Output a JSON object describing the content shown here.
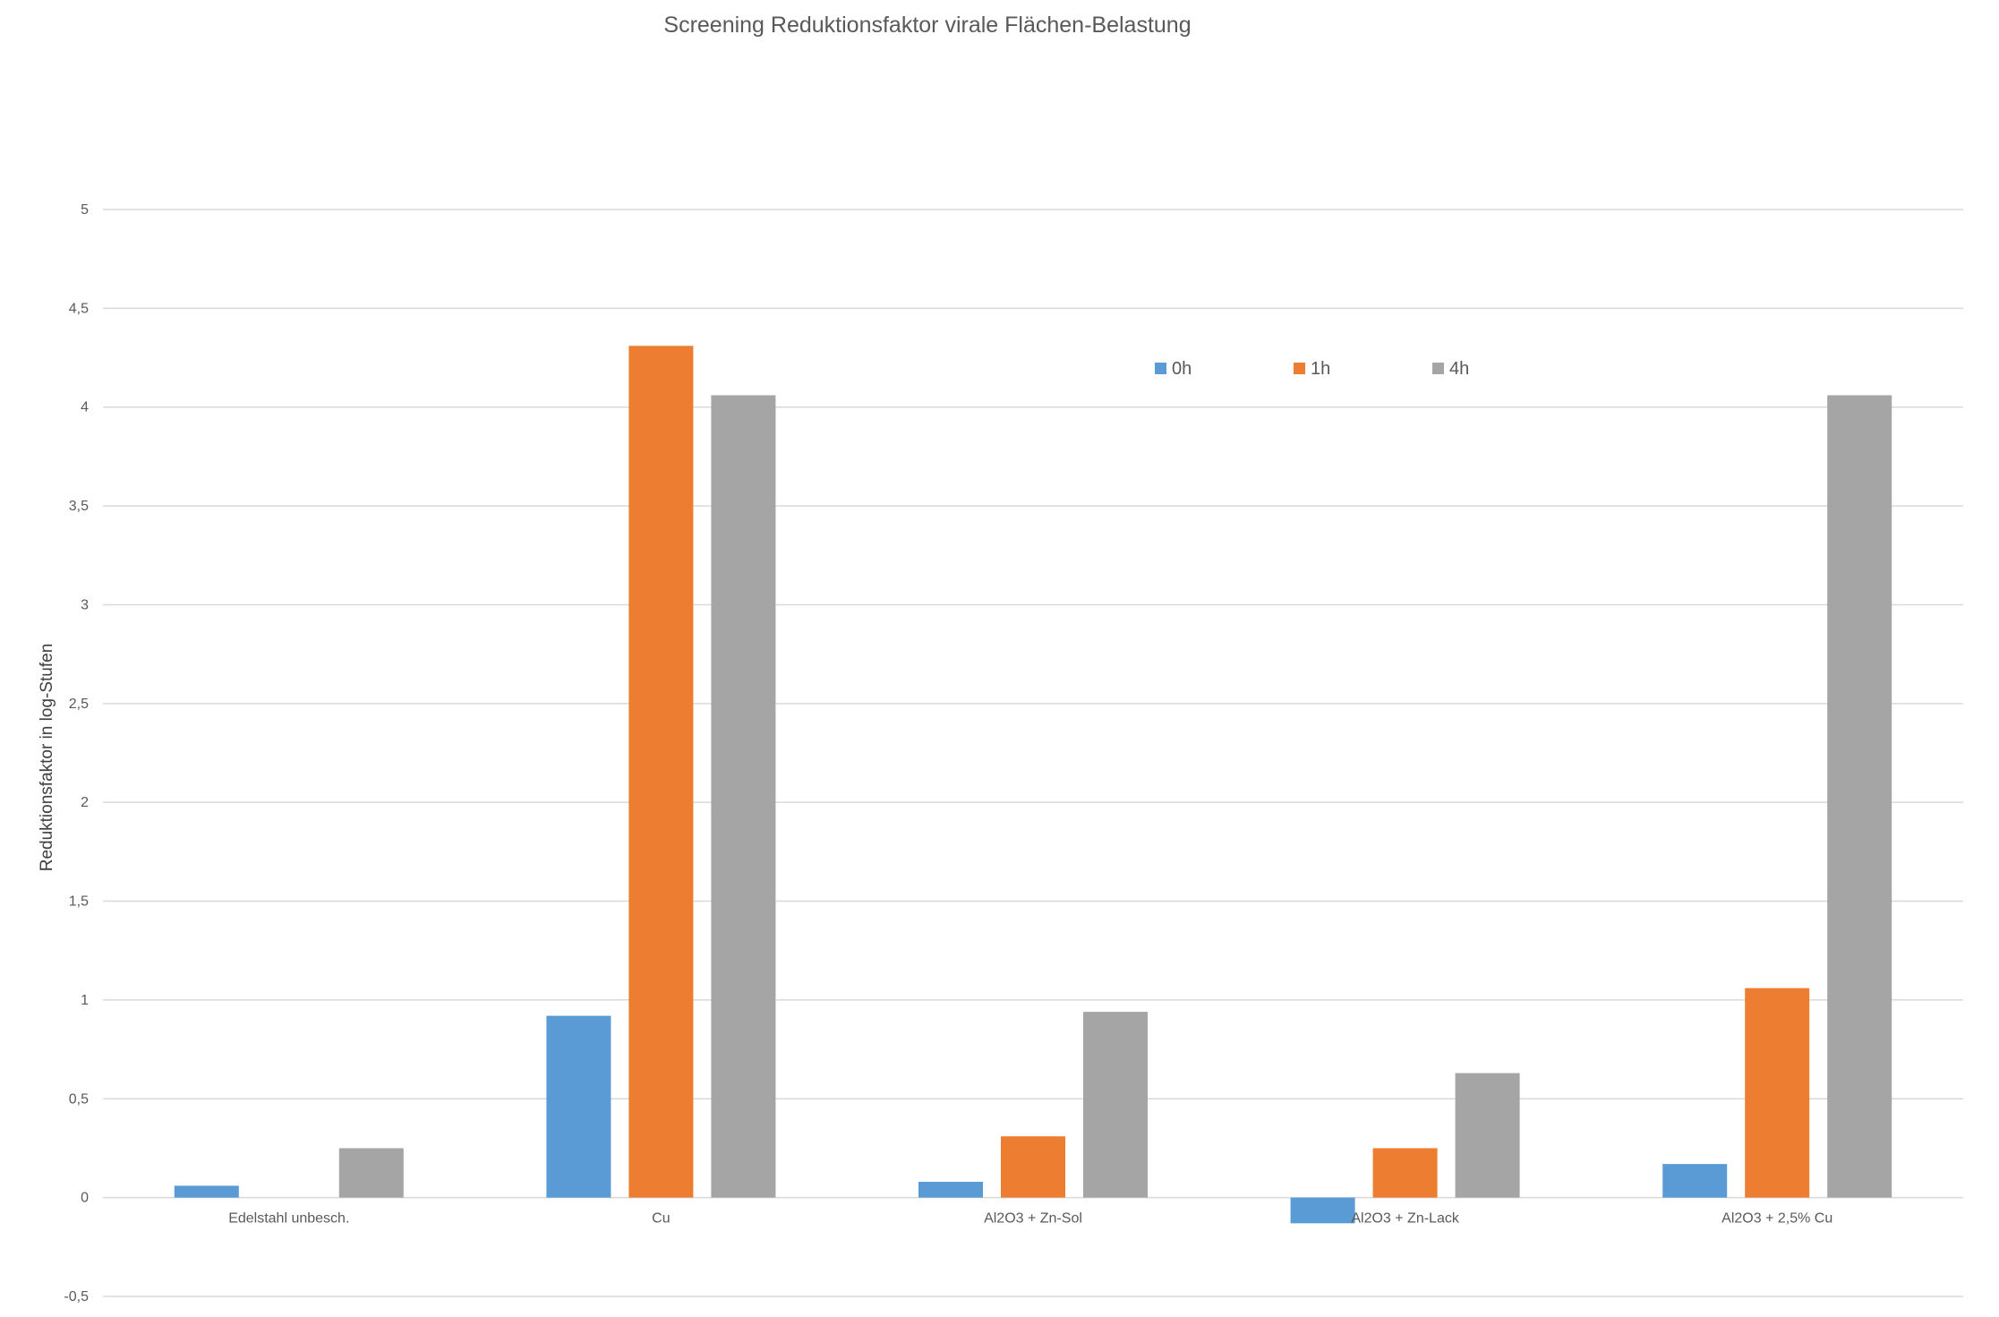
{
  "chart_data": {
    "type": "bar",
    "title": "Screening Reduktionsfaktor virale Flächen-Belastung",
    "xlabel": "",
    "ylabel": "Reduktionsfaktor in log-Stufen",
    "categories": [
      "Edelstahl unbesch.",
      "Cu",
      "Al2O3 + Zn-Sol",
      "Al2O3 + Zn-Lack",
      "Al2O3 + 2,5% Cu"
    ],
    "series": [
      {
        "name": "0h",
        "color": "#5B9BD5",
        "values": [
          0.06,
          0.92,
          0.08,
          -0.13,
          0.17
        ]
      },
      {
        "name": "1h",
        "color": "#ED7D31",
        "values": [
          0,
          4.31,
          0.31,
          0.25,
          1.06
        ]
      },
      {
        "name": "4h",
        "color": "#A5A5A5",
        "values": [
          0.25,
          4.06,
          0.94,
          0.63,
          4.06
        ]
      }
    ],
    "ylim": [
      -0.5,
      5
    ],
    "yticks": [
      5,
      4.5,
      4,
      3.5,
      3,
      2.5,
      2,
      1.5,
      1,
      0.5,
      0,
      -0.5
    ],
    "ytick_labels": [
      "5",
      "4,5",
      "4",
      "3,5",
      "3",
      "2,5",
      "2",
      "1,5",
      "1",
      "0,5",
      "0",
      "-0,5"
    ],
    "grid": true,
    "legend_position": "top-right"
  }
}
